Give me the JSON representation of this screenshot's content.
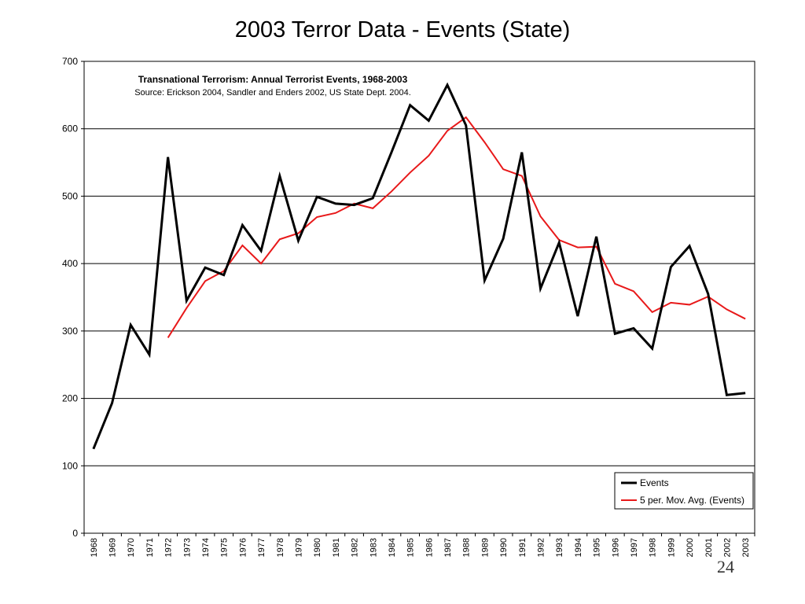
{
  "slide": {
    "title": "2003 Terror Data - Events (State)",
    "page_number": "24"
  },
  "chart_data": {
    "type": "line",
    "annotation": {
      "title": "Transnational Terrorism: Annual Terrorist Events, 1968-2003",
      "source": "Source: Erickson 2004, Sandler and Enders 2002, US State Dept. 2004."
    },
    "categories": [
      "1968",
      "1969",
      "1970",
      "1971",
      "1972",
      "1973",
      "1974",
      "1975",
      "1976",
      "1977",
      "1978",
      "1979",
      "1980",
      "1981",
      "1982",
      "1983",
      "1984",
      "1985",
      "1986",
      "1987",
      "1988",
      "1989",
      "1990",
      "1991",
      "1992",
      "1993",
      "1994",
      "1995",
      "1996",
      "1997",
      "1998",
      "1999",
      "2000",
      "2001",
      "2002",
      "2003"
    ],
    "ylim": [
      0,
      700
    ],
    "yticks": [
      0,
      100,
      200,
      300,
      400,
      500,
      600,
      700
    ],
    "grid": true,
    "legend_position": "bottom-right",
    "series": [
      {
        "name": "Events",
        "color": "#000000",
        "values": [
          125,
          193,
          309,
          265,
          558,
          345,
          394,
          383,
          457,
          419,
          530,
          434,
          499,
          489,
          487,
          497,
          565,
          635,
          612,
          665,
          605,
          375,
          437,
          565,
          363,
          431,
          322,
          440,
          296,
          304,
          274,
          395,
          426,
          355,
          205,
          208
        ]
      },
      {
        "name": "5 per. Mov. Avg. (Events)",
        "color": "#e8191a",
        "values": [
          null,
          null,
          null,
          null,
          290,
          334,
          374,
          389,
          427,
          400,
          436,
          445,
          469,
          475,
          489,
          482,
          507,
          535,
          560,
          597,
          617,
          580,
          540,
          530,
          470,
          435,
          424,
          425,
          370,
          359,
          328,
          342,
          339,
          351,
          332,
          318
        ]
      }
    ]
  }
}
